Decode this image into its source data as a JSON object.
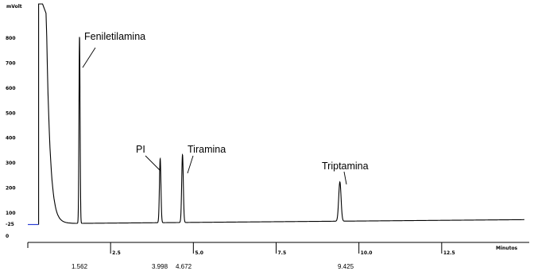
{
  "chart_data": {
    "type": "line",
    "ylabel": "mVolt",
    "xlabel": "Minutos",
    "xlim": [
      0,
      15
    ],
    "ylim": [
      -25,
      900
    ],
    "y_ticks": [
      {
        "value": 800,
        "label": "800"
      },
      {
        "value": 700,
        "label": "700"
      },
      {
        "value": 600,
        "label": "600"
      },
      {
        "value": 500,
        "label": "500"
      },
      {
        "value": 400,
        "label": "400"
      },
      {
        "value": 300,
        "label": "300"
      },
      {
        "value": 200,
        "label": "200"
      },
      {
        "value": 100,
        "label": "100"
      },
      {
        "value": 0,
        "label": "0"
      },
      {
        "value": -25,
        "label": "-25"
      }
    ],
    "x_ticks": [
      {
        "value": 2.5,
        "label": "2.5"
      },
      {
        "value": 5.0,
        "label": "5.0"
      },
      {
        "value": 7.5,
        "label": "7.5"
      },
      {
        "value": 10.0,
        "label": "10.0"
      },
      {
        "value": 12.5,
        "label": "12.5"
      }
    ],
    "baseline": 55,
    "blue_level": 50,
    "injection_time": 0.35,
    "peaks": [
      {
        "name": "Feniletilamina",
        "rt": 1.562,
        "rt_label": "1.562",
        "height": 810
      },
      {
        "name": "PI",
        "rt": 3.998,
        "rt_label": "3.998",
        "height": 315
      },
      {
        "name": "Tiramina",
        "rt": 4.672,
        "rt_label": "4.672",
        "height": 330
      },
      {
        "name": "Triptamina",
        "rt": 9.425,
        "rt_label": "9.425",
        "height": 215
      }
    ],
    "grid": false,
    "legend": "none"
  }
}
